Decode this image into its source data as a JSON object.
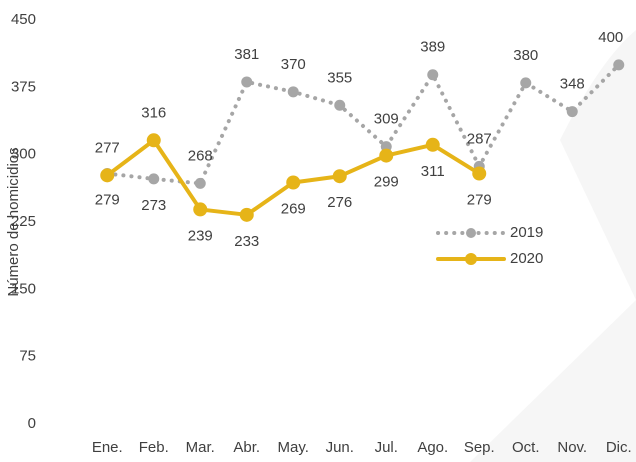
{
  "chart_data": {
    "type": "line",
    "y_label": "Número de homicidios",
    "categories": [
      "Ene.",
      "Feb.",
      "Mar.",
      "Abr.",
      "May.",
      "Jun.",
      "Jul.",
      "Ago.",
      "Sep.",
      "Oct.",
      "Nov.",
      "Dic."
    ],
    "series": [
      {
        "name": "2019",
        "color": "#a6a6a6",
        "dashed": true,
        "values": [
          279,
          273,
          268,
          381,
          370,
          355,
          309,
          389,
          287,
          380,
          348,
          400
        ]
      },
      {
        "name": "2020",
        "color": "#e6b418",
        "dashed": false,
        "values": [
          277,
          316,
          239,
          233,
          269,
          276,
          299,
          311,
          279,
          null,
          null,
          null
        ]
      }
    ],
    "ylim": [
      0,
      450
    ],
    "yticks": [
      0,
      75,
      150,
      225,
      300,
      375,
      450
    ],
    "grid": false
  }
}
